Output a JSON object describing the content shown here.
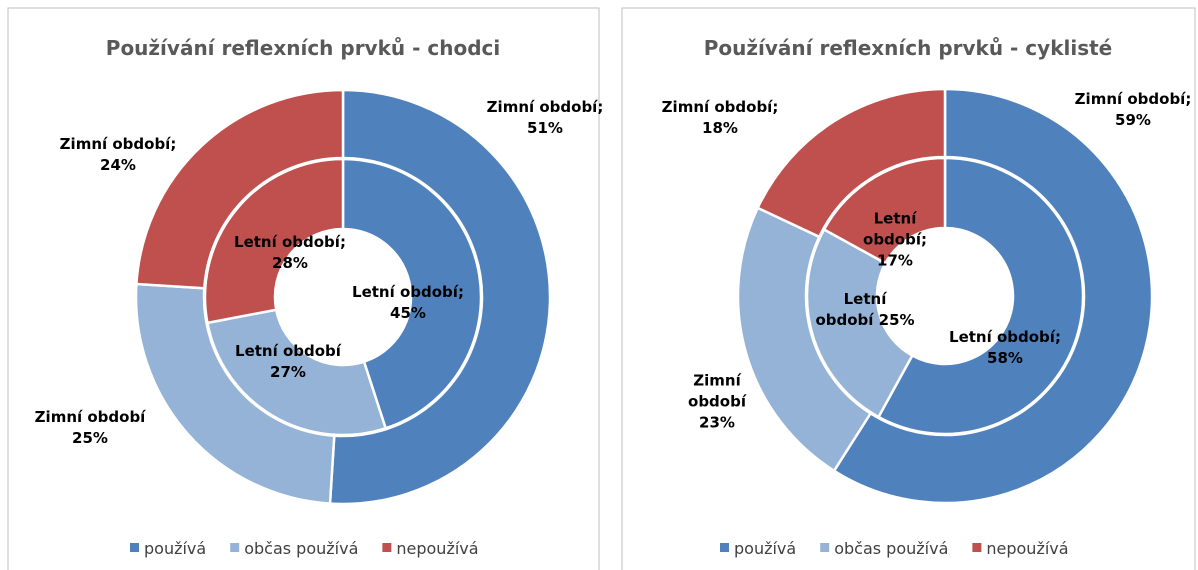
{
  "chart_data": [
    {
      "type": "doughnut",
      "title": "Používání reflexních prvků - chodci",
      "categories": [
        "používá",
        "občas používá",
        "nepoužívá"
      ],
      "colors": [
        "#4f81bd",
        "#95b3d7",
        "#c0504d"
      ],
      "series": [
        {
          "values": [
            51,
            25,
            24
          ],
          "value_labels": [
            "Zimní období; 51%",
            "Zimní období 25%",
            "Zimní období; 24%"
          ]
        },
        {
          "values": [
            45,
            27,
            28
          ],
          "value_labels": [
            "Letní období; 45%",
            "Letní období 27%",
            "Letní období; 28%"
          ]
        }
      ]
    },
    {
      "type": "doughnut",
      "title": "Používání reflexních prvků - cyklisté",
      "categories": [
        "používá",
        "občas používá",
        "nepoužívá"
      ],
      "colors": [
        "#4f81bd",
        "#95b3d7",
        "#c0504d"
      ],
      "series": [
        {
          "values": [
            59,
            23,
            18
          ],
          "value_labels": [
            "Zimní období; 59%",
            "Zimní období 23%",
            "Zimní období; 18%"
          ]
        },
        {
          "values": [
            58,
            25,
            17
          ],
          "value_labels": [
            "Letní období; 58%",
            "Letní období 25%",
            "Letní období; 17%"
          ]
        }
      ]
    }
  ]
}
